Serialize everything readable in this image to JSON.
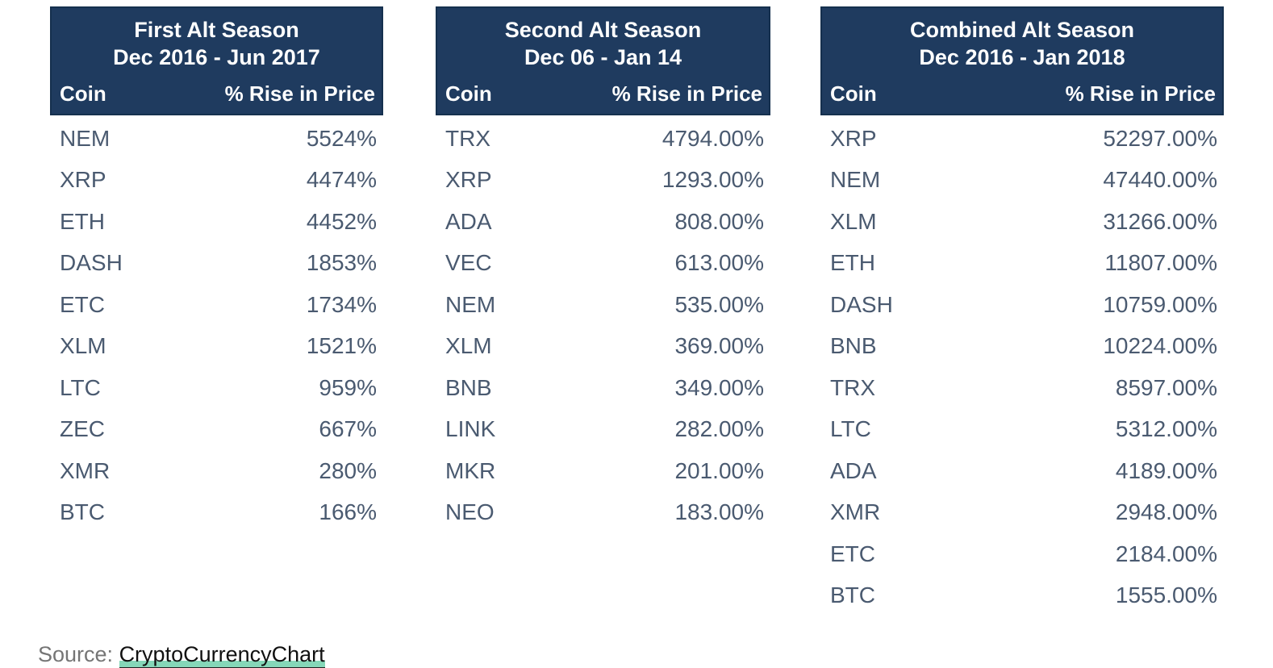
{
  "colors": {
    "header_bg": "#1f3b5f",
    "header_border": "#15304e",
    "header_text": "#ffffff",
    "row_text": "#4a5a70",
    "source_label_gray": "#757575",
    "link_text": "#111111",
    "link_underline_green": "#85d7b8"
  },
  "tables": [
    {
      "title_line1": "First Alt Season",
      "title_line2": "Dec 2016 - Jun 2017",
      "col_coin": "Coin",
      "col_rise": "% Rise in Price",
      "rows": [
        {
          "coin": "NEM",
          "rise": "5524%"
        },
        {
          "coin": "XRP",
          "rise": "4474%"
        },
        {
          "coin": "ETH",
          "rise": "4452%"
        },
        {
          "coin": "DASH",
          "rise": "1853%"
        },
        {
          "coin": "ETC",
          "rise": "1734%"
        },
        {
          "coin": "XLM",
          "rise": "1521%"
        },
        {
          "coin": "LTC",
          "rise": "959%"
        },
        {
          "coin": "ZEC",
          "rise": "667%"
        },
        {
          "coin": "XMR",
          "rise": "280%"
        },
        {
          "coin": "BTC",
          "rise": "166%"
        }
      ]
    },
    {
      "title_line1": "Second Alt Season",
      "title_line2": "Dec 06 - Jan 14",
      "col_coin": "Coin",
      "col_rise": "% Rise in Price",
      "rows": [
        {
          "coin": "TRX",
          "rise": "4794.00%"
        },
        {
          "coin": "XRP",
          "rise": "1293.00%"
        },
        {
          "coin": "ADA",
          "rise": "808.00%"
        },
        {
          "coin": "VEC",
          "rise": "613.00%"
        },
        {
          "coin": "NEM",
          "rise": "535.00%"
        },
        {
          "coin": "XLM",
          "rise": "369.00%"
        },
        {
          "coin": "BNB",
          "rise": "349.00%"
        },
        {
          "coin": "LINK",
          "rise": "282.00%"
        },
        {
          "coin": "MKR",
          "rise": "201.00%"
        },
        {
          "coin": "NEO",
          "rise": "183.00%"
        }
      ]
    },
    {
      "title_line1": "Combined Alt Season",
      "title_line2": "Dec 2016 - Jan 2018",
      "col_coin": "Coin",
      "col_rise": "% Rise in Price",
      "rows": [
        {
          "coin": "XRP",
          "rise": "52297.00%"
        },
        {
          "coin": "NEM",
          "rise": "47440.00%"
        },
        {
          "coin": "XLM",
          "rise": "31266.00%"
        },
        {
          "coin": "ETH",
          "rise": "11807.00%"
        },
        {
          "coin": "DASH",
          "rise": "10759.00%"
        },
        {
          "coin": "BNB",
          "rise": "10224.00%"
        },
        {
          "coin": "TRX",
          "rise": "8597.00%"
        },
        {
          "coin": "LTC",
          "rise": "5312.00%"
        },
        {
          "coin": "ADA",
          "rise": "4189.00%"
        },
        {
          "coin": "XMR",
          "rise": "2948.00%"
        },
        {
          "coin": "ETC",
          "rise": "2184.00%"
        },
        {
          "coin": "BTC",
          "rise": "1555.00%"
        }
      ]
    }
  ],
  "source": {
    "label": "Source: ",
    "link_text": "CryptoCurrencyChart"
  },
  "chart_data": [
    {
      "type": "table",
      "title": "First Alt Season Dec 2016 - Jun 2017",
      "columns": [
        "Coin",
        "% Rise in Price"
      ],
      "rows": [
        [
          "NEM",
          5524
        ],
        [
          "XRP",
          4474
        ],
        [
          "ETH",
          4452
        ],
        [
          "DASH",
          1853
        ],
        [
          "ETC",
          1734
        ],
        [
          "XLM",
          1521
        ],
        [
          "LTC",
          959
        ],
        [
          "ZEC",
          667
        ],
        [
          "XMR",
          280
        ],
        [
          "BTC",
          166
        ]
      ]
    },
    {
      "type": "table",
      "title": "Second Alt Season Dec 06 - Jan 14",
      "columns": [
        "Coin",
        "% Rise in Price"
      ],
      "rows": [
        [
          "TRX",
          4794.0
        ],
        [
          "XRP",
          1293.0
        ],
        [
          "ADA",
          808.0
        ],
        [
          "VEC",
          613.0
        ],
        [
          "NEM",
          535.0
        ],
        [
          "XLM",
          369.0
        ],
        [
          "BNB",
          349.0
        ],
        [
          "LINK",
          282.0
        ],
        [
          "MKR",
          201.0
        ],
        [
          "NEO",
          183.0
        ]
      ]
    },
    {
      "type": "table",
      "title": "Combined Alt Season Dec 2016 - Jan 2018",
      "columns": [
        "Coin",
        "% Rise in Price"
      ],
      "rows": [
        [
          "XRP",
          52297.0
        ],
        [
          "NEM",
          47440.0
        ],
        [
          "XLM",
          31266.0
        ],
        [
          "ETH",
          11807.0
        ],
        [
          "DASH",
          10759.0
        ],
        [
          "BNB",
          10224.0
        ],
        [
          "TRX",
          8597.0
        ],
        [
          "LTC",
          5312.0
        ],
        [
          "ADA",
          4189.0
        ],
        [
          "XMR",
          2948.0
        ],
        [
          "ETC",
          2184.0
        ],
        [
          "BTC",
          1555.0
        ]
      ]
    }
  ]
}
